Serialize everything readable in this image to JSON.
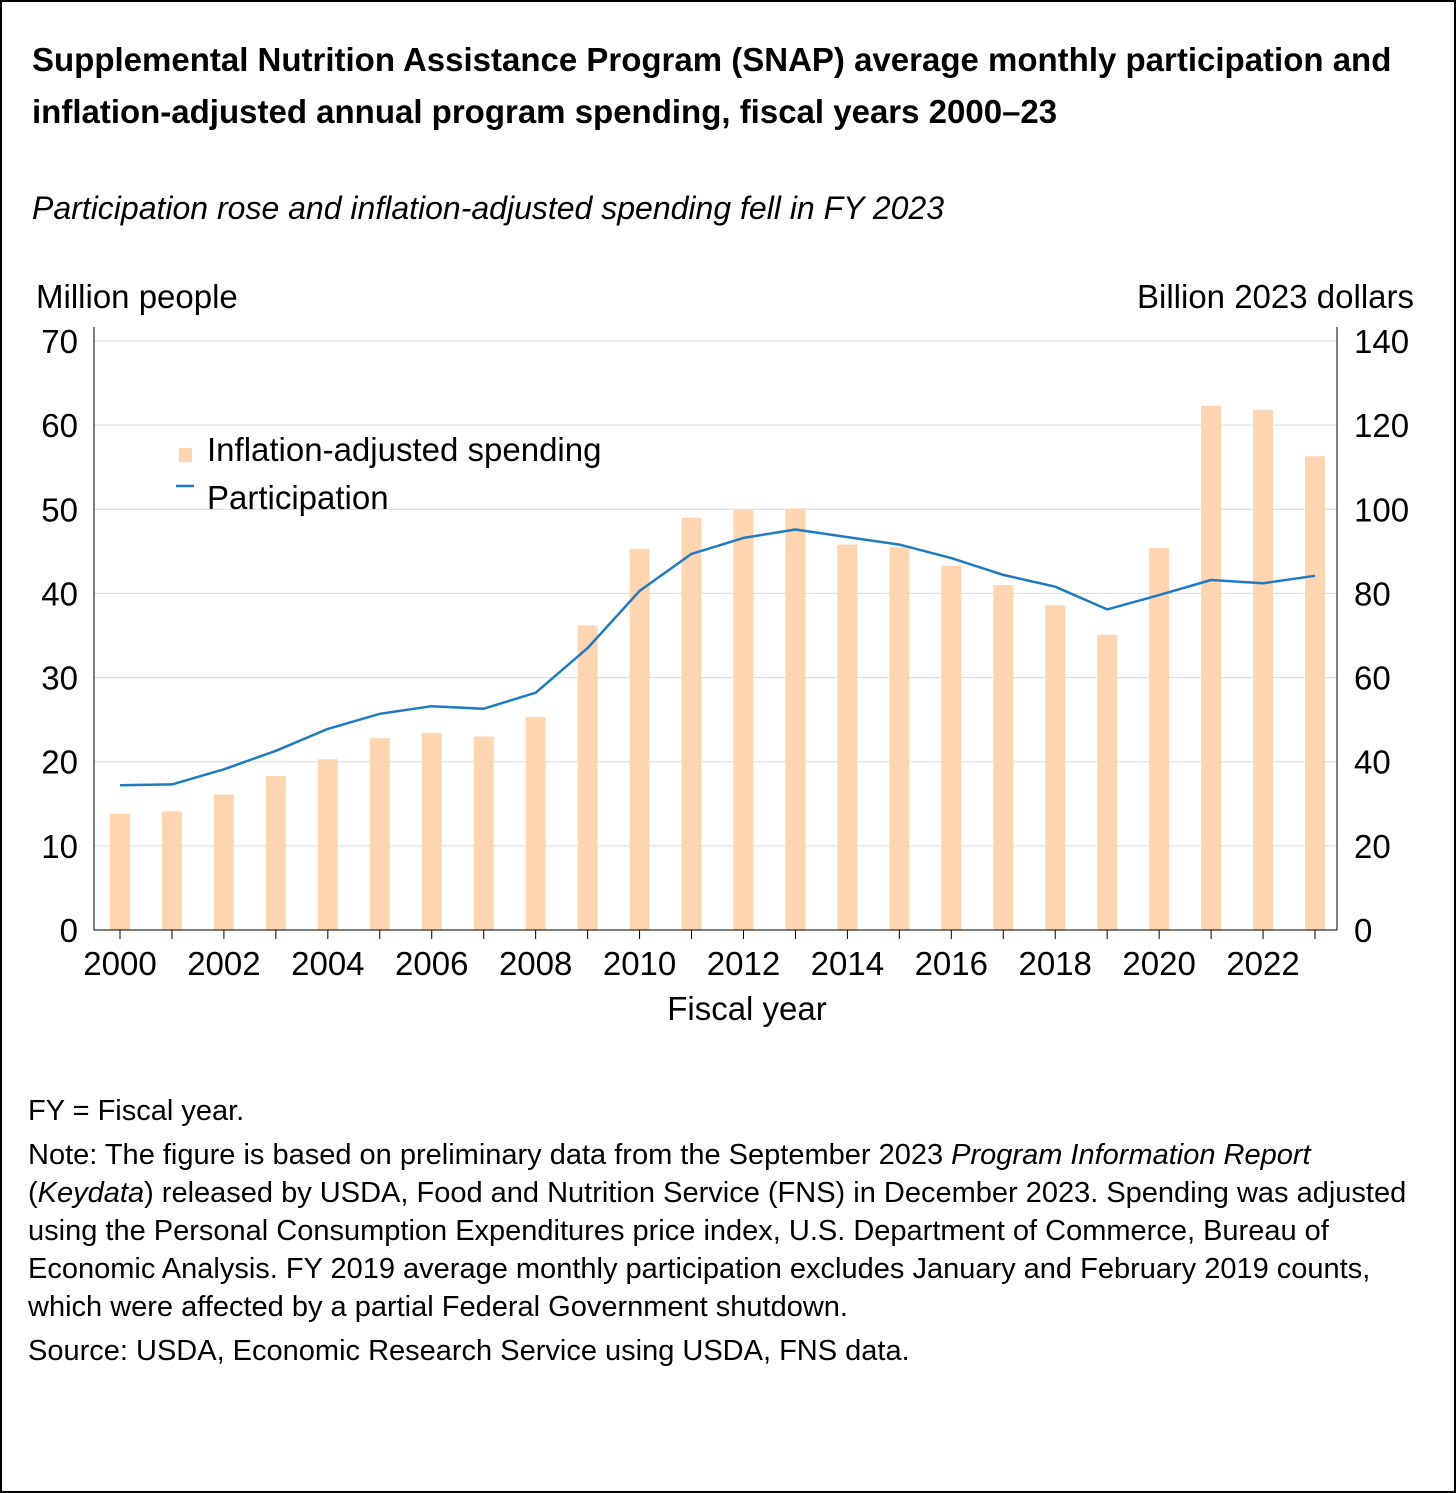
{
  "title": "Supplemental Nutrition Assistance Program (SNAP) average monthly participation and inflation-adjusted annual program spending, fiscal years 2000–23",
  "subtitle": "Participation rose and inflation-adjusted spending fell in FY 2023",
  "footer": {
    "fy_note": "FY = Fiscal year.",
    "note_1": "Note: The figure is based on preliminary data from the September 2023 ",
    "note_italic_1": "Program Information Report",
    "note_2": " (",
    "note_italic_2": "Keydata",
    "note_3": ") released by USDA, Food and Nutrition Service (FNS) in December 2023. Spending was adjusted using the Personal Consumption Expenditures price index, U.S. Department of Commerce, Bureau of Economic Analysis. FY 2019 average monthly participation excludes January and February 2019 counts, which were affected by a partial Federal Government shutdown.",
    "source": "Source: USDA, Economic Research Service using USDA, FNS data."
  },
  "colors": {
    "bar": "#fdd5b1",
    "line": "#1f7bc1",
    "grid": "#d9d9d9",
    "axis": "#000000"
  },
  "chart_data": {
    "type": "bar",
    "title": "Supplemental Nutrition Assistance Program (SNAP) average monthly participation and inflation-adjusted annual program spending, fiscal years 2000–23",
    "xlabel": "Fiscal year",
    "ylabel_left": "Million people",
    "ylabel_right": "Billion 2023 dollars",
    "ylim_left": [
      0,
      70
    ],
    "ylim_right": [
      0,
      140
    ],
    "yticks_left": [
      "0",
      "10",
      "20",
      "30",
      "40",
      "50",
      "60",
      "70"
    ],
    "yticks_right": [
      "0",
      "20",
      "40",
      "60",
      "80",
      "100",
      "120",
      "140"
    ],
    "x_tick_labels": [
      "2000",
      "2002",
      "2004",
      "2006",
      "2008",
      "2010",
      "2012",
      "2014",
      "2016",
      "2018",
      "2020",
      "2022"
    ],
    "grid": true,
    "legend_position": "top-left",
    "categories": [
      2000,
      2001,
      2002,
      2003,
      2004,
      2005,
      2006,
      2007,
      2008,
      2009,
      2010,
      2011,
      2012,
      2013,
      2014,
      2015,
      2016,
      2017,
      2018,
      2019,
      2020,
      2021,
      2022,
      2023
    ],
    "series": [
      {
        "name": "Inflation-adjusted spending",
        "type": "bar",
        "axis": "right",
        "values": [
          27.6,
          28.2,
          32.2,
          36.6,
          40.6,
          45.6,
          46.8,
          46.0,
          50.6,
          72.4,
          90.6,
          98.0,
          99.8,
          100.2,
          91.6,
          91.0,
          86.6,
          82.0,
          77.2,
          70.2,
          90.8,
          124.6,
          123.6,
          112.6
        ]
      },
      {
        "name": "Participation",
        "type": "line",
        "axis": "left",
        "values": [
          17.2,
          17.3,
          19.1,
          21.3,
          23.9,
          25.7,
          26.6,
          26.3,
          28.2,
          33.5,
          40.3,
          44.7,
          46.6,
          47.6,
          46.7,
          45.8,
          44.2,
          42.2,
          40.8,
          38.1,
          39.8,
          41.6,
          41.2,
          42.1
        ]
      }
    ]
  }
}
